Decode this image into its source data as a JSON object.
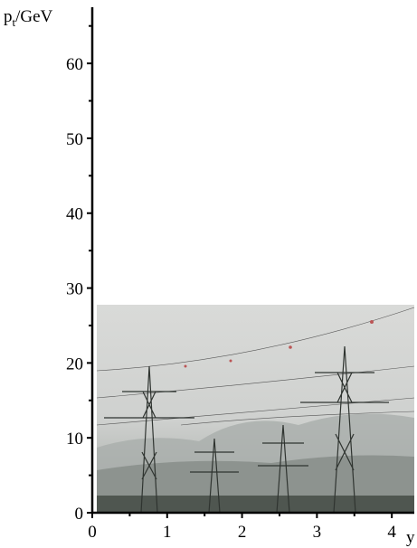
{
  "chart_data": {
    "type": "line",
    "x_label": "y",
    "y_label": {
      "base": "p",
      "subscript": "t",
      "suffix": "/GeV"
    },
    "xlim": [
      0,
      4.3
    ],
    "ylim": [
      0,
      67.5
    ],
    "xticks": [
      0,
      1,
      2,
      3,
      4
    ],
    "yticks": [
      0,
      10,
      20,
      30,
      40,
      50,
      60
    ],
    "xminorticks": [
      0.5,
      1.5,
      2.5,
      3.5
    ],
    "yminorticks": [
      5,
      15,
      25,
      35,
      45,
      55,
      65
    ],
    "axis_color": "#000000"
  }
}
